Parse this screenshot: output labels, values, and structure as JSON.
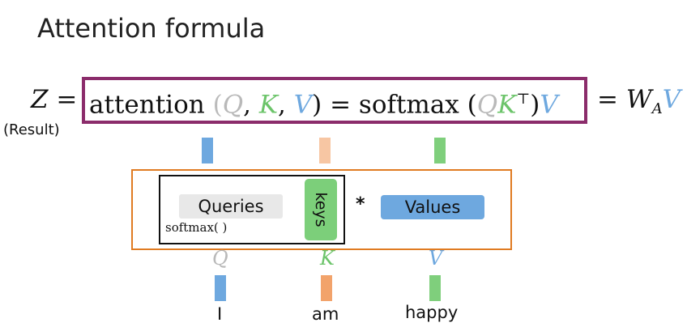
{
  "title": "Attention formula",
  "result_label": "(Result)",
  "colors": {
    "q": "#b9b9b9",
    "k": "#6cc46a",
    "v": "#6ea8df",
    "purple_box": "#8b2c6b",
    "orange_box": "#e07b22",
    "bar_blue": "#6ea8df",
    "bar_peach": "#f7c6a3",
    "bar_green": "#7fcf7c",
    "bar_orange": "#f2a36b"
  },
  "equation": {
    "z": "Z",
    "eq": "=",
    "attention": "attention",
    "lparen": "(",
    "q": "Q",
    "comma": ",",
    "k": "K",
    "v": "V",
    "rparen": ")",
    "softmax": "softmax",
    "transpose": "⊤",
    "wa": "W",
    "wa_sub": "A"
  },
  "diagram": {
    "queries_label": "Queries",
    "keys_label": "keys",
    "values_label": "Values",
    "softmax_label": "softmax(  )",
    "multiply_symbol": "*"
  },
  "tokens": [
    {
      "letter": "Q",
      "word": "I"
    },
    {
      "letter": "K",
      "word": "am"
    },
    {
      "letter": "V",
      "word": "happy"
    }
  ]
}
